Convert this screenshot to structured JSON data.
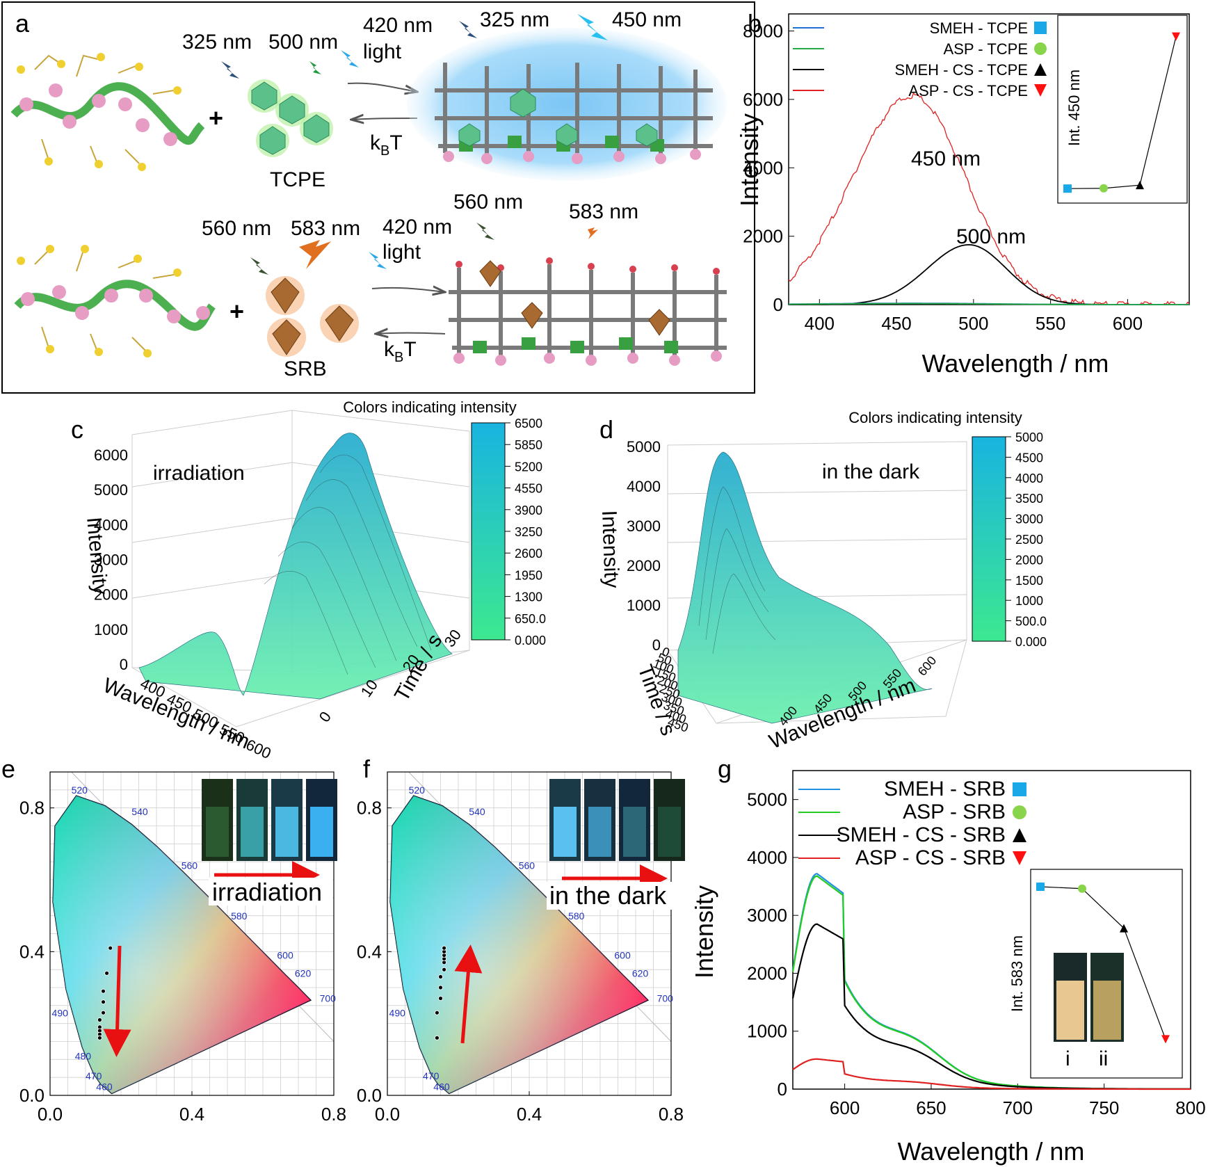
{
  "panel_a": {
    "label": "a",
    "top": {
      "wl1": "325 nm",
      "wl2": "500 nm",
      "light": "420 nm\nlight",
      "wl3": "325 nm",
      "wl4": "450 nm",
      "kbt": "k",
      "kbt_sub": "B",
      "kbt_t": "T",
      "guest": "TCPE",
      "light_line1": "420 nm",
      "light_line2": "light"
    },
    "bottom": {
      "wl1": "560 nm",
      "wl2": "583 nm",
      "light_line1": "420 nm",
      "light_line2": "light",
      "wl3": "560 nm",
      "wl4": "583 nm",
      "kbt": "k",
      "kbt_sub": "B",
      "kbt_t": "T",
      "guest": "SRB"
    },
    "plus": "+"
  },
  "chart_data": [
    {
      "panel": "b",
      "type": "line",
      "xlabel": "Wavelength / nm",
      "ylabel": "Intensity",
      "xlim": [
        380,
        640
      ],
      "ylim": [
        0,
        8500
      ],
      "xticks": [
        "400",
        "450",
        "500",
        "550",
        "600"
      ],
      "yticks": [
        "0",
        "2000",
        "4000",
        "6000",
        "8000"
      ],
      "legend": [
        "SMEH - TCPE",
        "ASP - TCPE",
        "SMEH - CS - TCPE",
        "ASP - CS - TCPE"
      ],
      "legend_colors": [
        "#1f6fd0",
        "#22aa44",
        "#000000",
        "#e02020"
      ],
      "marker_colors": [
        "#19a8e8",
        "#88d44a",
        "#000000",
        "#ff1010"
      ],
      "annotations": [
        "450 nm",
        "500 nm"
      ],
      "series": [
        {
          "name": "ASP - CS - TCPE",
          "peak_x": 460,
          "peak_y": 6100,
          "width": 55
        },
        {
          "name": "SMEH - CS - TCPE",
          "peak_x": 497,
          "peak_y": 1750,
          "width": 38
        },
        {
          "name": "SMEH - TCPE",
          "peak_x": 460,
          "peak_y": 40,
          "width": 80
        },
        {
          "name": "ASP - TCPE",
          "peak_x": 460,
          "peak_y": 30,
          "width": 80
        }
      ],
      "inset": {
        "ylabel": "Int. 450 nm",
        "values": [
          100,
          110,
          230,
          5800
        ]
      }
    },
    {
      "panel": "c",
      "type": "surface3d",
      "zlabel": "Intensity",
      "xlabel": "Wavelength / nm",
      "ylabel": "Time / s",
      "zticks": [
        "0",
        "1000",
        "2000",
        "3000",
        "4000",
        "5000",
        "6000"
      ],
      "xticks": [
        "400",
        "450",
        "500",
        "550",
        "600"
      ],
      "yticks": [
        "0",
        "10",
        "20",
        "30"
      ],
      "colorbar_title": "Colors indicating intensity",
      "colorbar_ticks": [
        "6500",
        "5850",
        "5200",
        "4550",
        "3900",
        "3250",
        "2600",
        "1950",
        "1300",
        "650.0",
        "0.000"
      ],
      "annotation": "irradiation"
    },
    {
      "panel": "d",
      "type": "surface3d",
      "zlabel": "Intensity",
      "xlabel": "Wavelength / nm",
      "ylabel": "Time / s",
      "zticks": [
        "0",
        "1000",
        "2000",
        "3000",
        "4000",
        "5000"
      ],
      "xticks": [
        "400",
        "450",
        "500",
        "550",
        "600"
      ],
      "yticks": [
        "0",
        "50",
        "100",
        "150",
        "200",
        "250",
        "300",
        "350",
        "400",
        "450"
      ],
      "colorbar_title": "Colors indicating intensity",
      "colorbar_ticks": [
        "5000",
        "4500",
        "4000",
        "3500",
        "3000",
        "2500",
        "2000",
        "1500",
        "1000",
        "500.0",
        "0.000"
      ],
      "annotation": "in the dark"
    },
    {
      "panel": "e",
      "type": "scatter",
      "xlim": [
        0.0,
        0.8
      ],
      "ylim": [
        0.0,
        0.9
      ],
      "xticks": [
        "0.0",
        "0.4",
        "0.8"
      ],
      "yticks": [
        "0.0",
        "0.4",
        "0.8"
      ],
      "annotation": "irradiation",
      "points": [
        [
          0.17,
          0.41
        ],
        [
          0.16,
          0.34
        ],
        [
          0.15,
          0.29
        ],
        [
          0.15,
          0.26
        ],
        [
          0.15,
          0.23
        ],
        [
          0.14,
          0.21
        ],
        [
          0.14,
          0.19
        ],
        [
          0.14,
          0.18
        ],
        [
          0.14,
          0.17
        ],
        [
          0.14,
          0.16
        ]
      ],
      "wavelength_labels": [
        "460",
        "470",
        "480",
        "490",
        "520",
        "540",
        "560",
        "580",
        "600",
        "620",
        "700"
      ]
    },
    {
      "panel": "f",
      "type": "scatter",
      "xlim": [
        0.0,
        0.8
      ],
      "ylim": [
        0.0,
        0.9
      ],
      "xticks": [
        "0.0",
        "0.4",
        "0.8"
      ],
      "yticks": [
        "0.0",
        "0.4",
        "0.8"
      ],
      "annotation": "in the dark",
      "points": [
        [
          0.14,
          0.16
        ],
        [
          0.14,
          0.23
        ],
        [
          0.15,
          0.27
        ],
        [
          0.15,
          0.3
        ],
        [
          0.15,
          0.33
        ],
        [
          0.16,
          0.35
        ],
        [
          0.16,
          0.37
        ],
        [
          0.16,
          0.38
        ],
        [
          0.16,
          0.39
        ],
        [
          0.16,
          0.4
        ],
        [
          0.16,
          0.41
        ]
      ],
      "wavelength_labels": [
        "460",
        "470",
        "490",
        "520",
        "540",
        "560",
        "580",
        "600",
        "620",
        "700"
      ]
    },
    {
      "panel": "g",
      "type": "line",
      "xlabel": "Wavelength / nm",
      "ylabel": "Intensity",
      "xlim": [
        570,
        800
      ],
      "ylim": [
        0,
        5500
      ],
      "xticks": [
        "600",
        "650",
        "700",
        "750",
        "800"
      ],
      "yticks": [
        "0",
        "1000",
        "2000",
        "3000",
        "4000",
        "5000"
      ],
      "legend": [
        "SMEH - SRB",
        "ASP - SRB",
        "SMEH - CS - SRB",
        "ASP - CS - SRB"
      ],
      "legend_colors": [
        "#1f8fe0",
        "#22cc22",
        "#000000",
        "#e02020"
      ],
      "marker_colors": [
        "#19a8e8",
        "#88d44a",
        "#000000",
        "#ff1010"
      ],
      "series": [
        {
          "name": "SMEH - SRB",
          "peak_y": 3720
        },
        {
          "name": "ASP - SRB",
          "peak_y": 3680
        },
        {
          "name": "SMEH - CS - SRB",
          "peak_y": 2850
        },
        {
          "name": "ASP - CS - SRB",
          "peak_y": 520
        }
      ],
      "inset": {
        "ylabel": "Int. 583 nm",
        "values": [
          3720,
          3680,
          2850,
          520
        ],
        "photo_labels": [
          "i",
          "ii"
        ]
      }
    }
  ],
  "labels": {
    "b": "b",
    "c": "c",
    "d": "d",
    "e": "e",
    "f": "f",
    "g": "g"
  }
}
